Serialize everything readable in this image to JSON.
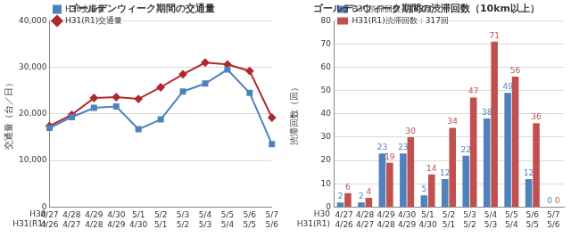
{
  "chart_data": [
    {
      "type": "line",
      "title": "ゴールデンウィーク期間の交通量",
      "y_label": "交通量（台／日）",
      "category_row_names": [
        "H30",
        "H31(R1)"
      ],
      "categories": [
        [
          "4/27",
          "4/26"
        ],
        [
          "4/28",
          "4/27"
        ],
        [
          "4/29",
          "4/28"
        ],
        [
          "4/30",
          "4/29"
        ],
        [
          "5/1",
          "4/30"
        ],
        [
          "5/2",
          "5/1"
        ],
        [
          "5/3",
          "5/2"
        ],
        [
          "5/4",
          "5/3"
        ],
        [
          "5/5",
          "5/4"
        ],
        [
          "5/6",
          "5/5"
        ],
        [
          "5/7",
          "5/6"
        ]
      ],
      "series": [
        {
          "name": "H30交通量",
          "color": "#4f81bd",
          "marker": "square",
          "values": [
            17000,
            19300,
            21300,
            21600,
            16700,
            18800,
            24800,
            26500,
            29500,
            24500,
            13500
          ]
        },
        {
          "name": "H31(R1)交通量",
          "color": "#b0282e",
          "marker": "diamond",
          "values": [
            17400,
            19800,
            23400,
            23600,
            23200,
            25700,
            28500,
            31000,
            30600,
            29200,
            19200
          ]
        }
      ],
      "ylim": [
        0,
        40000
      ],
      "yticks": [
        0,
        {
          "value": 10000,
          "label": "10,000"
        },
        {
          "value": 20000,
          "label": "20,000"
        },
        {
          "value": 30000,
          "label": "30,000"
        },
        {
          "value": 40000,
          "label": "40,000"
        }
      ],
      "grid": true,
      "legend": "upper left"
    },
    {
      "type": "bar",
      "title": "ゴールデンウィーク期間の渋滞回数（10km以上）",
      "y_label": "渋滞回数（回）",
      "category_row_names": [
        "H30",
        "H31(R1)"
      ],
      "categories": [
        [
          "4/27",
          "4/26"
        ],
        [
          "4/28",
          "4/27"
        ],
        [
          "4/29",
          "4/28"
        ],
        [
          "4/30",
          "4/29"
        ],
        [
          "5/1",
          "4/30"
        ],
        [
          "5/2",
          "5/1"
        ],
        [
          "5/3",
          "5/2"
        ],
        [
          "5/4",
          "5/3"
        ],
        [
          "5/5",
          "5/4"
        ],
        [
          "5/6",
          "5/5"
        ],
        [
          "5/7",
          "5/6"
        ]
      ],
      "series": [
        {
          "name": "H30渋滞回数：188回",
          "color": "#4f81bd",
          "values": [
            2,
            2,
            23,
            23,
            5,
            12,
            22,
            38,
            49,
            12,
            0
          ]
        },
        {
          "name": "H31(R1)渋滞回数：317回",
          "color": "#c0504d",
          "values": [
            6,
            4,
            19,
            30,
            14,
            34,
            47,
            71,
            56,
            36,
            0
          ]
        }
      ],
      "ylim": [
        0,
        80
      ],
      "yticks": [
        0,
        10,
        20,
        30,
        40,
        50,
        60,
        70,
        80
      ],
      "grid": true,
      "legend": "upper left",
      "data_labels": true
    }
  ]
}
